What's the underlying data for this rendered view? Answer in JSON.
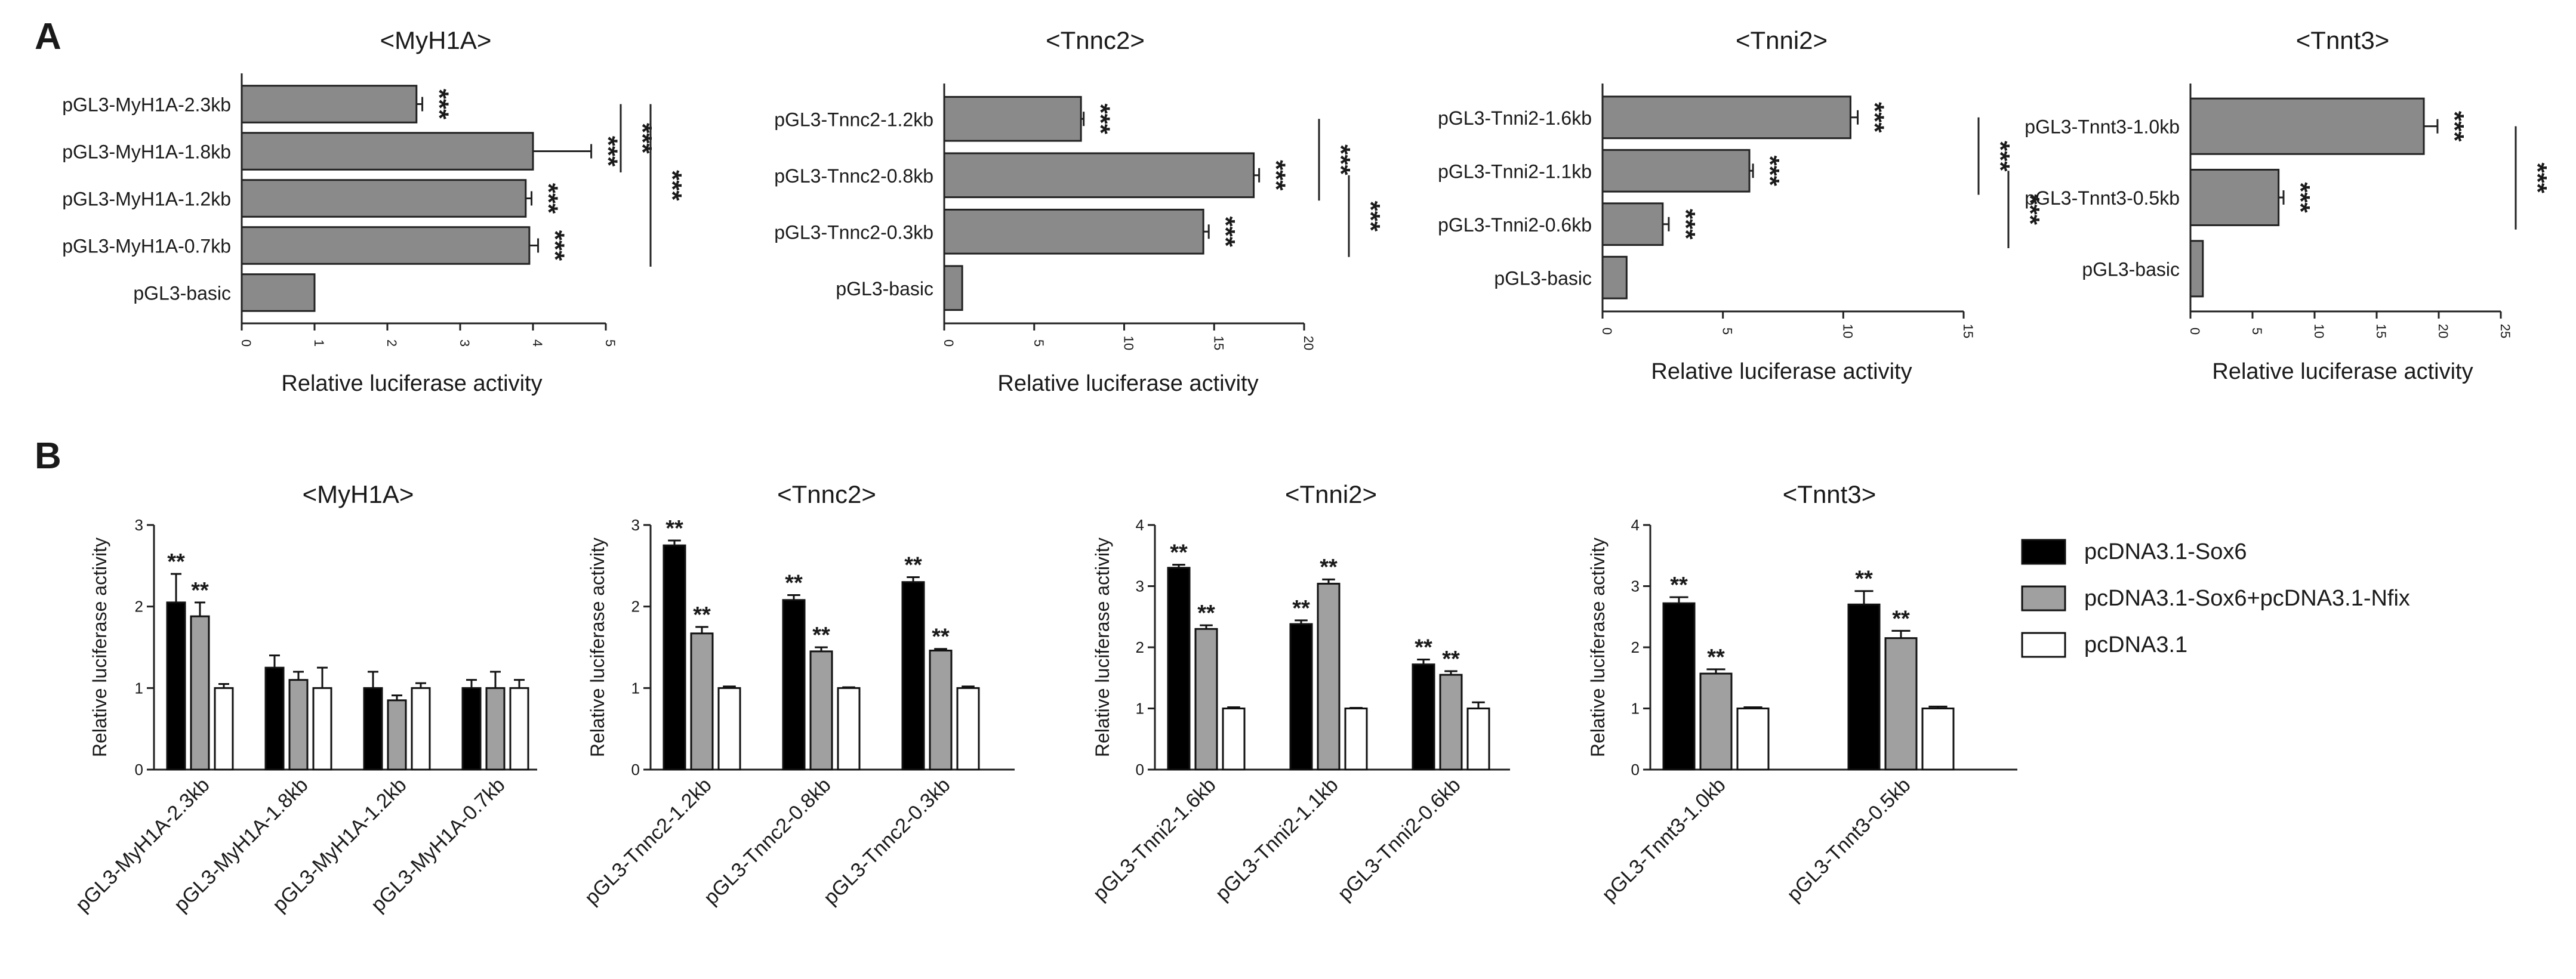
{
  "panel_labels": {
    "A": "A",
    "B": "B"
  },
  "colors": {
    "hbar": "#8a8a8a",
    "sox6": "#000000",
    "sox6nfix": "#a0a0a0",
    "empty": "#ffffff"
  },
  "chart_data": [
    {
      "panel": "A",
      "type": "bar",
      "orientation": "horizontal",
      "title": "<MyH1A>",
      "xlabel": "Relative luciferase activity",
      "xlim": [
        0,
        5
      ],
      "ticks": [
        0,
        1,
        2,
        3,
        4,
        5
      ],
      "categories": [
        "pGL3-MyH1A-2.3kb",
        "pGL3-MyH1A-1.8kb",
        "pGL3-MyH1A-1.2kb",
        "pGL3-MyH1A-0.7kb",
        "pGL3-basic"
      ],
      "values": [
        2.4,
        4.0,
        3.9,
        3.95,
        1.0
      ],
      "errors": [
        0.08,
        0.8,
        0.08,
        0.12,
        0
      ],
      "bar_stars": [
        "***",
        "***",
        "***",
        "***",
        ""
      ],
      "brackets": [
        {
          "from": 0,
          "to": 1,
          "text": "***"
        },
        {
          "from": 0,
          "to": 3,
          "text": "***"
        }
      ]
    },
    {
      "panel": "A",
      "type": "bar",
      "orientation": "horizontal",
      "title": "<Tnnc2>",
      "xlabel": "Relative luciferase activity",
      "xlim": [
        0,
        20
      ],
      "ticks": [
        0,
        5,
        10,
        15,
        20
      ],
      "categories": [
        "pGL3-Tnnc2-1.2kb",
        "pGL3-Tnnc2-0.8kb",
        "pGL3-Tnnc2-0.3kb",
        "pGL3-basic"
      ],
      "values": [
        7.6,
        17.2,
        14.4,
        1.0
      ],
      "errors": [
        0.15,
        0.3,
        0.3,
        0
      ],
      "bar_stars": [
        "***",
        "***",
        "***",
        ""
      ],
      "brackets": [
        {
          "from": 0,
          "to": 1,
          "text": "***"
        },
        {
          "from": 1,
          "to": 2,
          "text": "***"
        }
      ]
    },
    {
      "panel": "A",
      "type": "bar",
      "orientation": "horizontal",
      "title": "<Tnni2>",
      "xlabel": "Relative luciferase activity",
      "xlim": [
        0,
        15
      ],
      "ticks": [
        0,
        5,
        10,
        15
      ],
      "categories": [
        "pGL3-Tnni2-1.6kb",
        "pGL3-Tnni2-1.1kb",
        "pGL3-Tnni2-0.6kb",
        "pGL3-basic"
      ],
      "values": [
        10.3,
        6.1,
        2.5,
        1.0
      ],
      "errors": [
        0.3,
        0.15,
        0.25,
        0
      ],
      "bar_stars": [
        "***",
        "***",
        "***",
        ""
      ],
      "brackets": [
        {
          "from": 0,
          "to": 1,
          "text": "***"
        },
        {
          "from": 1,
          "to": 2,
          "text": "***"
        }
      ]
    },
    {
      "panel": "A",
      "type": "bar",
      "orientation": "horizontal",
      "title": "<Tnnt3>",
      "xlabel": "Relative luciferase activity",
      "xlim": [
        0,
        25
      ],
      "ticks": [
        0,
        5,
        10,
        15,
        20,
        25
      ],
      "categories": [
        "pGL3-Tnnt3-1.0kb",
        "pGL3-Tnnt3-0.5kb",
        "pGL3-basic"
      ],
      "values": [
        18.8,
        7.1,
        1.0
      ],
      "errors": [
        1.1,
        0.4,
        0
      ],
      "bar_stars": [
        "***",
        "***",
        ""
      ],
      "brackets": [
        {
          "from": 0,
          "to": 1,
          "text": "***"
        }
      ]
    },
    {
      "panel": "B",
      "type": "bar",
      "orientation": "vertical",
      "title": "<MyH1A>",
      "ylabel": "Relative luciferase activity",
      "ylim": [
        0,
        3
      ],
      "ticks": [
        0,
        1,
        2,
        3
      ],
      "categories": [
        "pGL3-MyH1A-2.3kb",
        "pGL3-MyH1A-1.8kb",
        "pGL3-MyH1A-1.2kb",
        "pGL3-MyH1A-0.7kb"
      ],
      "series": [
        {
          "name": "pcDNA3.1-Sox6",
          "values": [
            2.05,
            1.25,
            1.0,
            1.0
          ],
          "errors": [
            0.35,
            0.15,
            0.2,
            0.1
          ],
          "stars": [
            "**",
            "",
            "",
            ""
          ]
        },
        {
          "name": "pcDNA3.1-Sox6+pcDNA3.1-Nfix",
          "values": [
            1.88,
            1.1,
            0.85,
            1.0
          ],
          "errors": [
            0.17,
            0.1,
            0.06,
            0.2
          ],
          "stars": [
            "**",
            "",
            "",
            ""
          ]
        },
        {
          "name": "pcDNA3.1",
          "values": [
            1.0,
            1.0,
            1.0,
            1.0
          ],
          "errors": [
            0.05,
            0.25,
            0.06,
            0.1
          ],
          "stars": [
            "",
            "",
            "",
            ""
          ]
        }
      ]
    },
    {
      "panel": "B",
      "type": "bar",
      "orientation": "vertical",
      "title": "<Tnnc2>",
      "ylabel": "Relative luciferase activity",
      "ylim": [
        0,
        3
      ],
      "ticks": [
        0,
        1,
        2,
        3
      ],
      "categories": [
        "pGL3-Tnnc2-1.2kb",
        "pGL3-Tnnc2-0.8kb",
        "pGL3-Tnnc2-0.3kb"
      ],
      "series": [
        {
          "name": "pcDNA3.1-Sox6",
          "values": [
            2.75,
            2.08,
            2.3
          ],
          "errors": [
            0.06,
            0.06,
            0.06
          ],
          "stars": [
            "**",
            "**",
            "**"
          ]
        },
        {
          "name": "pcDNA3.1-Sox6+pcDNA3.1-Nfix",
          "values": [
            1.67,
            1.45,
            1.46
          ],
          "errors": [
            0.08,
            0.05,
            0.02
          ],
          "stars": [
            "**",
            "**",
            "**"
          ]
        },
        {
          "name": "pcDNA3.1",
          "values": [
            1.0,
            1.0,
            1.0
          ],
          "errors": [
            0.02,
            0.01,
            0.02
          ],
          "stars": [
            "",
            "",
            ""
          ]
        }
      ]
    },
    {
      "panel": "B",
      "type": "bar",
      "orientation": "vertical",
      "title": "<Tnni2>",
      "ylabel": "Relative luciferase activity",
      "ylim": [
        0,
        4
      ],
      "ticks": [
        0,
        1,
        2,
        3,
        4
      ],
      "categories": [
        "pGL3-Tnni2-1.6kb",
        "pGL3-Tnni2-1.1kb",
        "pGL3-Tnni2-0.6kb"
      ],
      "series": [
        {
          "name": "pcDNA3.1-Sox6",
          "values": [
            3.3,
            2.38,
            1.72
          ],
          "errors": [
            0.05,
            0.06,
            0.08
          ],
          "stars": [
            "**",
            "**",
            "**"
          ]
        },
        {
          "name": "pcDNA3.1-Sox6+pcDNA3.1-Nfix",
          "values": [
            2.3,
            3.04,
            1.55
          ],
          "errors": [
            0.06,
            0.07,
            0.06
          ],
          "stars": [
            "**",
            "**",
            "**"
          ]
        },
        {
          "name": "pcDNA3.1",
          "values": [
            1.0,
            1.0,
            1.0
          ],
          "errors": [
            0.02,
            0.01,
            0.1
          ],
          "stars": [
            "",
            "",
            ""
          ]
        }
      ]
    },
    {
      "panel": "B",
      "type": "bar",
      "orientation": "vertical",
      "title": "<Tnnt3>",
      "ylabel": "Relative luciferase activity",
      "ylim": [
        0,
        4
      ],
      "ticks": [
        0,
        1,
        2,
        3,
        4
      ],
      "categories": [
        "pGL3-Tnnt3-1.0kb",
        "pGL3-Tnnt3-0.5kb"
      ],
      "series": [
        {
          "name": "pcDNA3.1-Sox6",
          "values": [
            2.72,
            2.7
          ],
          "errors": [
            0.1,
            0.22
          ],
          "stars": [
            "**",
            "**"
          ]
        },
        {
          "name": "pcDNA3.1-Sox6+pcDNA3.1-Nfix",
          "values": [
            1.57,
            2.15
          ],
          "errors": [
            0.07,
            0.12
          ],
          "stars": [
            "**",
            "**"
          ]
        },
        {
          "name": "pcDNA3.1",
          "values": [
            1.0,
            1.0
          ],
          "errors": [
            0.02,
            0.03
          ],
          "stars": [
            "",
            ""
          ]
        }
      ]
    }
  ],
  "legend": {
    "items": [
      {
        "label": "pcDNA3.1-Sox6",
        "color": "#000000"
      },
      {
        "label": "pcDNA3.1-Sox6+pcDNA3.1-Nfix",
        "color": "#a0a0a0"
      },
      {
        "label": "pcDNA3.1",
        "color": "#ffffff"
      }
    ]
  }
}
